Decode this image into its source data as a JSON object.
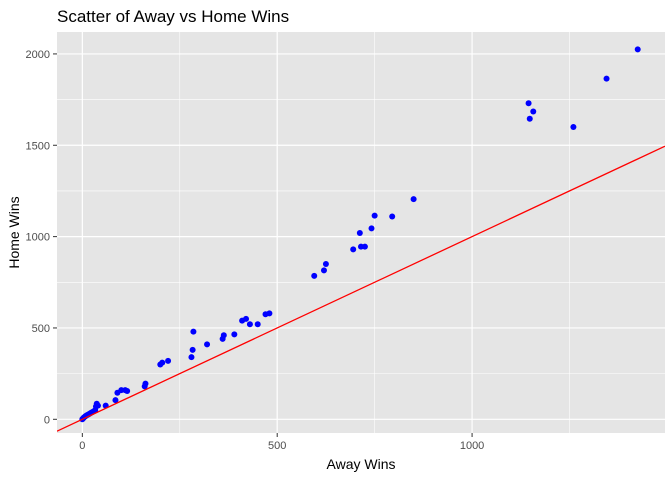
{
  "chart_data": {
    "type": "scatter",
    "title": "Scatter of Away vs Home Wins",
    "xlabel": "Away Wins",
    "ylabel": "Home Wins",
    "xlim": [
      -65,
      1495
    ],
    "ylim": [
      -75,
      2120
    ],
    "x_ticks": [
      0,
      500,
      1000
    ],
    "y_ticks": [
      0,
      500,
      1000,
      1500,
      2000
    ],
    "grid": true,
    "panel_color": "#e5e5e5",
    "grid_color": "#ffffff",
    "point_color": "#0000ff",
    "line_color": "#ff0000",
    "reference_line": {
      "intercept": 0,
      "slope": 1
    },
    "points": [
      [
        0,
        0
      ],
      [
        2,
        5
      ],
      [
        4,
        10
      ],
      [
        7,
        15
      ],
      [
        10,
        20
      ],
      [
        14,
        25
      ],
      [
        18,
        30
      ],
      [
        22,
        35
      ],
      [
        26,
        40
      ],
      [
        30,
        45
      ],
      [
        33,
        50
      ],
      [
        35,
        70
      ],
      [
        37,
        85
      ],
      [
        40,
        75
      ],
      [
        60,
        75
      ],
      [
        85,
        105
      ],
      [
        90,
        145
      ],
      [
        100,
        160
      ],
      [
        110,
        160
      ],
      [
        115,
        155
      ],
      [
        160,
        180
      ],
      [
        162,
        195
      ],
      [
        200,
        300
      ],
      [
        205,
        310
      ],
      [
        220,
        320
      ],
      [
        280,
        340
      ],
      [
        283,
        380
      ],
      [
        285,
        480
      ],
      [
        320,
        410
      ],
      [
        360,
        440
      ],
      [
        363,
        460
      ],
      [
        390,
        465
      ],
      [
        410,
        540
      ],
      [
        420,
        550
      ],
      [
        430,
        520
      ],
      [
        450,
        520
      ],
      [
        470,
        575
      ],
      [
        480,
        580
      ],
      [
        595,
        785
      ],
      [
        620,
        815
      ],
      [
        625,
        850
      ],
      [
        695,
        930
      ],
      [
        712,
        1020
      ],
      [
        715,
        945
      ],
      [
        725,
        945
      ],
      [
        742,
        1045
      ],
      [
        750,
        1115
      ],
      [
        795,
        1110
      ],
      [
        850,
        1205
      ],
      [
        1145,
        1730
      ],
      [
        1148,
        1645
      ],
      [
        1157,
        1685
      ],
      [
        1260,
        1600
      ],
      [
        1345,
        1865
      ],
      [
        1425,
        2025
      ]
    ]
  }
}
